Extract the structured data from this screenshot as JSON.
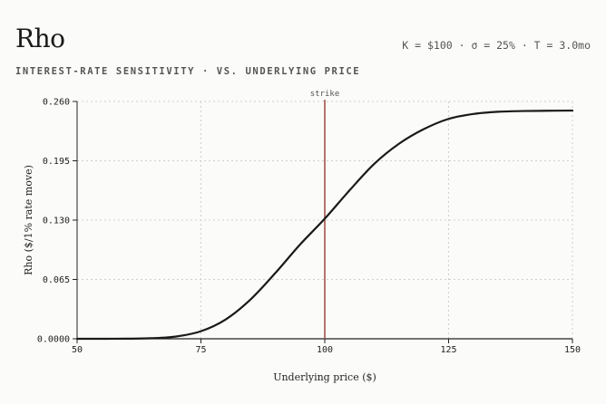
{
  "header": {
    "title": "Rho",
    "params": "K = $100 · σ = 25% · T = 3.0mo",
    "subtitle": "INTEREST-RATE SENSITIVITY · VS. UNDERLYING PRICE"
  },
  "colors": {
    "line": "#1a1a1a",
    "strike": "#9c4a3c",
    "grid": "#cfcfcf",
    "axis": "#222222"
  },
  "chart_data": {
    "type": "line",
    "title": "Rho",
    "subtitle": "INTEREST-RATE SENSITIVITY · VS. UNDERLYING PRICE",
    "xlabel": "Underlying price ($)",
    "ylabel": "Rho ($/1% rate move)",
    "xlim": [
      50,
      150
    ],
    "ylim": [
      0,
      0.26
    ],
    "xticks": [
      50,
      75,
      100,
      125,
      150
    ],
    "xtick_labels": [
      "50",
      "75",
      "100",
      "125",
      "150"
    ],
    "yticks": [
      0,
      0.065,
      0.13,
      0.195,
      0.26
    ],
    "ytick_labels": [
      "0.0000",
      "0.065",
      "0.130",
      "0.195",
      "0.260"
    ],
    "grid": true,
    "series": [
      {
        "x": [
          50,
          55,
          60,
          65,
          70,
          75,
          80,
          85,
          90,
          95,
          100,
          105,
          110,
          115,
          120,
          125,
          130,
          135,
          140,
          145,
          150
        ],
        "y": [
          0.0,
          0.0,
          0.0001,
          0.0006,
          0.0025,
          0.0083,
          0.0212,
          0.043,
          0.0719,
          0.1032,
          0.1316,
          0.1626,
          0.1917,
          0.2137,
          0.2297,
          0.2409,
          0.2463,
          0.2487,
          0.2495,
          0.2498,
          0.25
        ]
      }
    ],
    "annotations": [
      {
        "type": "vline",
        "x": 100,
        "label": "strike"
      }
    ]
  }
}
